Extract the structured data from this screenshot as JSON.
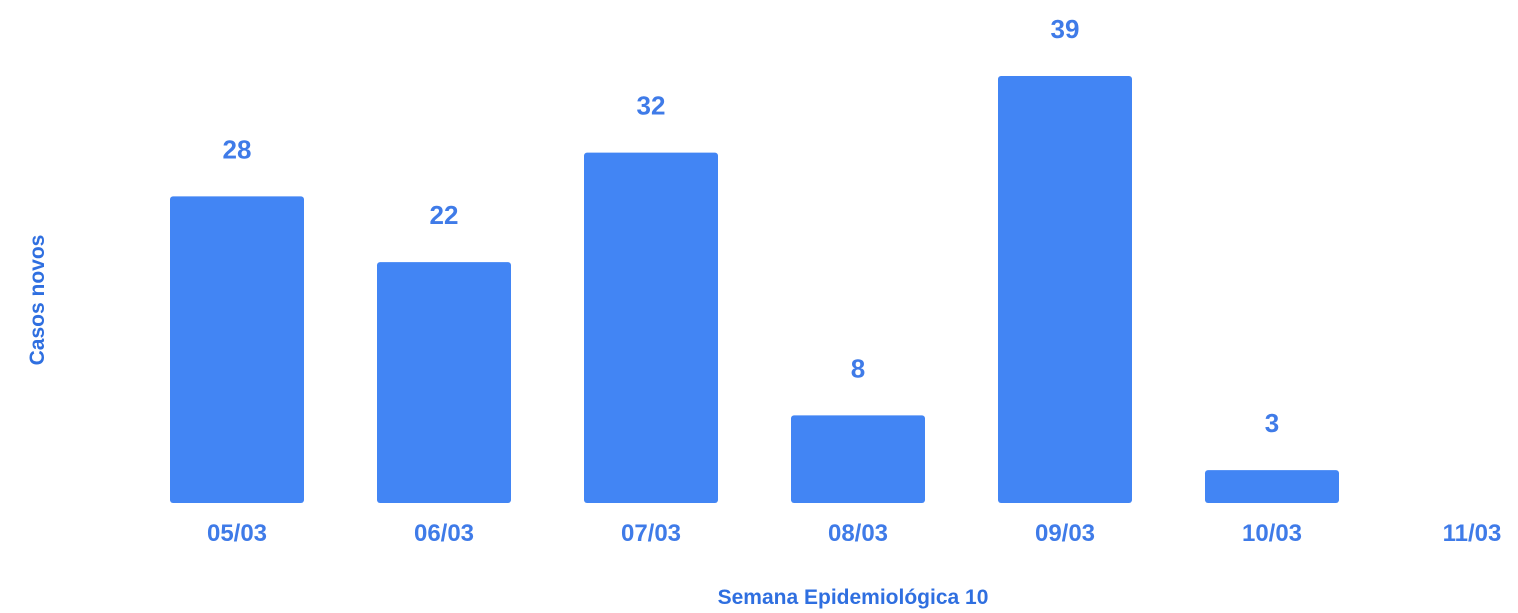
{
  "chart_data": {
    "type": "bar",
    "categories": [
      "05/03",
      "06/03",
      "07/03",
      "08/03",
      "09/03",
      "10/03",
      "11/03"
    ],
    "values": [
      28,
      22,
      32,
      8,
      39,
      3,
      null
    ],
    "data_labels": [
      "28",
      "22",
      "32",
      "8",
      "39",
      "3",
      ""
    ],
    "xlabel": "Semana Epidemiológica 10",
    "ylabel": "Casos novos",
    "ylim": [
      0,
      40
    ],
    "grid": false,
    "legend": "none",
    "colors": {
      "bar": "#4285f4",
      "text": "#3f7be8",
      "axis_title": "#2f6fe0"
    }
  }
}
